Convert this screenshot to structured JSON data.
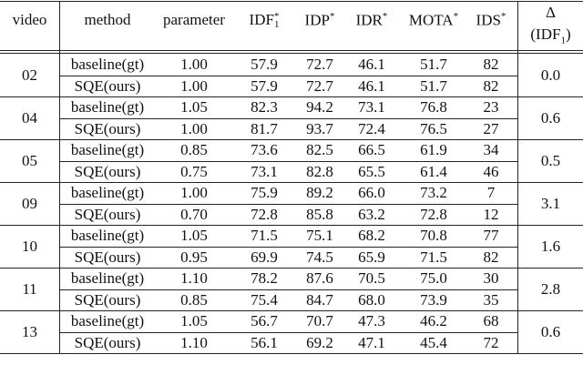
{
  "table": {
    "headers": {
      "video": "video",
      "method": "method",
      "parameter": "parameter",
      "idf1": "IDF",
      "idf1_sub": "1",
      "idf1_sup": "*",
      "idp": "IDP",
      "idp_sup": "*",
      "idr": "IDR",
      "idr_sup": "*",
      "mota": "MOTA",
      "mota_sup": "*",
      "ids": "IDS",
      "ids_sup": "*",
      "delta": "Δ",
      "delta_sub_label": "(IDF",
      "delta_sub_index": "1",
      "delta_close": ")"
    },
    "groups": [
      {
        "video": "02",
        "delta": "0.0",
        "rows": [
          {
            "method": "baseline(gt)",
            "parameter": "1.00",
            "idf1": "57.9",
            "idp": "72.7",
            "idr": "46.1",
            "mota": "51.7",
            "ids": "82"
          },
          {
            "method": "SQE(ours)",
            "parameter": "1.00",
            "idf1": "57.9",
            "idp": "72.7",
            "idr": "46.1",
            "mota": "51.7",
            "ids": "82"
          }
        ]
      },
      {
        "video": "04",
        "delta": "0.6",
        "rows": [
          {
            "method": "baseline(gt)",
            "parameter": "1.05",
            "idf1": "82.3",
            "idp": "94.2",
            "idr": "73.1",
            "mota": "76.8",
            "ids": "23"
          },
          {
            "method": "SQE(ours)",
            "parameter": "1.00",
            "idf1": "81.7",
            "idp": "93.7",
            "idr": "72.4",
            "mota": "76.5",
            "ids": "27"
          }
        ]
      },
      {
        "video": "05",
        "delta": "0.5",
        "rows": [
          {
            "method": "baseline(gt)",
            "parameter": "0.85",
            "idf1": "73.6",
            "idp": "82.5",
            "idr": "66.5",
            "mota": "61.9",
            "ids": "34"
          },
          {
            "method": "SQE(ours)",
            "parameter": "0.75",
            "idf1": "73.1",
            "idp": "82.8",
            "idr": "65.5",
            "mota": "61.4",
            "ids": "46"
          }
        ]
      },
      {
        "video": "09",
        "delta": "3.1",
        "rows": [
          {
            "method": "baseline(gt)",
            "parameter": "1.00",
            "idf1": "75.9",
            "idp": "89.2",
            "idr": "66.0",
            "mota": "73.2",
            "ids": "7"
          },
          {
            "method": "SQE(ours)",
            "parameter": "0.70",
            "idf1": "72.8",
            "idp": "85.8",
            "idr": "63.2",
            "mota": "72.8",
            "ids": "12"
          }
        ]
      },
      {
        "video": "10",
        "delta": "1.6",
        "rows": [
          {
            "method": "baseline(gt)",
            "parameter": "1.05",
            "idf1": "71.5",
            "idp": "75.1",
            "idr": "68.2",
            "mota": "70.8",
            "ids": "77"
          },
          {
            "method": "SQE(ours)",
            "parameter": "0.95",
            "idf1": "69.9",
            "idp": "74.5",
            "idr": "65.9",
            "mota": "71.5",
            "ids": "82"
          }
        ]
      },
      {
        "video": "11",
        "delta": "2.8",
        "rows": [
          {
            "method": "baseline(gt)",
            "parameter": "1.10",
            "idf1": "78.2",
            "idp": "87.6",
            "idr": "70.5",
            "mota": "75.0",
            "ids": "30"
          },
          {
            "method": "SQE(ours)",
            "parameter": "0.85",
            "idf1": "75.4",
            "idp": "84.7",
            "idr": "68.0",
            "mota": "73.9",
            "ids": "35"
          }
        ]
      },
      {
        "video": "13",
        "delta": "0.6",
        "rows": [
          {
            "method": "baseline(gt)",
            "parameter": "1.05",
            "idf1": "56.7",
            "idp": "70.7",
            "idr": "47.3",
            "mota": "46.2",
            "ids": "68"
          },
          {
            "method": "SQE(ours)",
            "parameter": "1.10",
            "idf1": "56.1",
            "idp": "69.2",
            "idr": "47.1",
            "mota": "45.4",
            "ids": "72"
          }
        ]
      }
    ]
  }
}
